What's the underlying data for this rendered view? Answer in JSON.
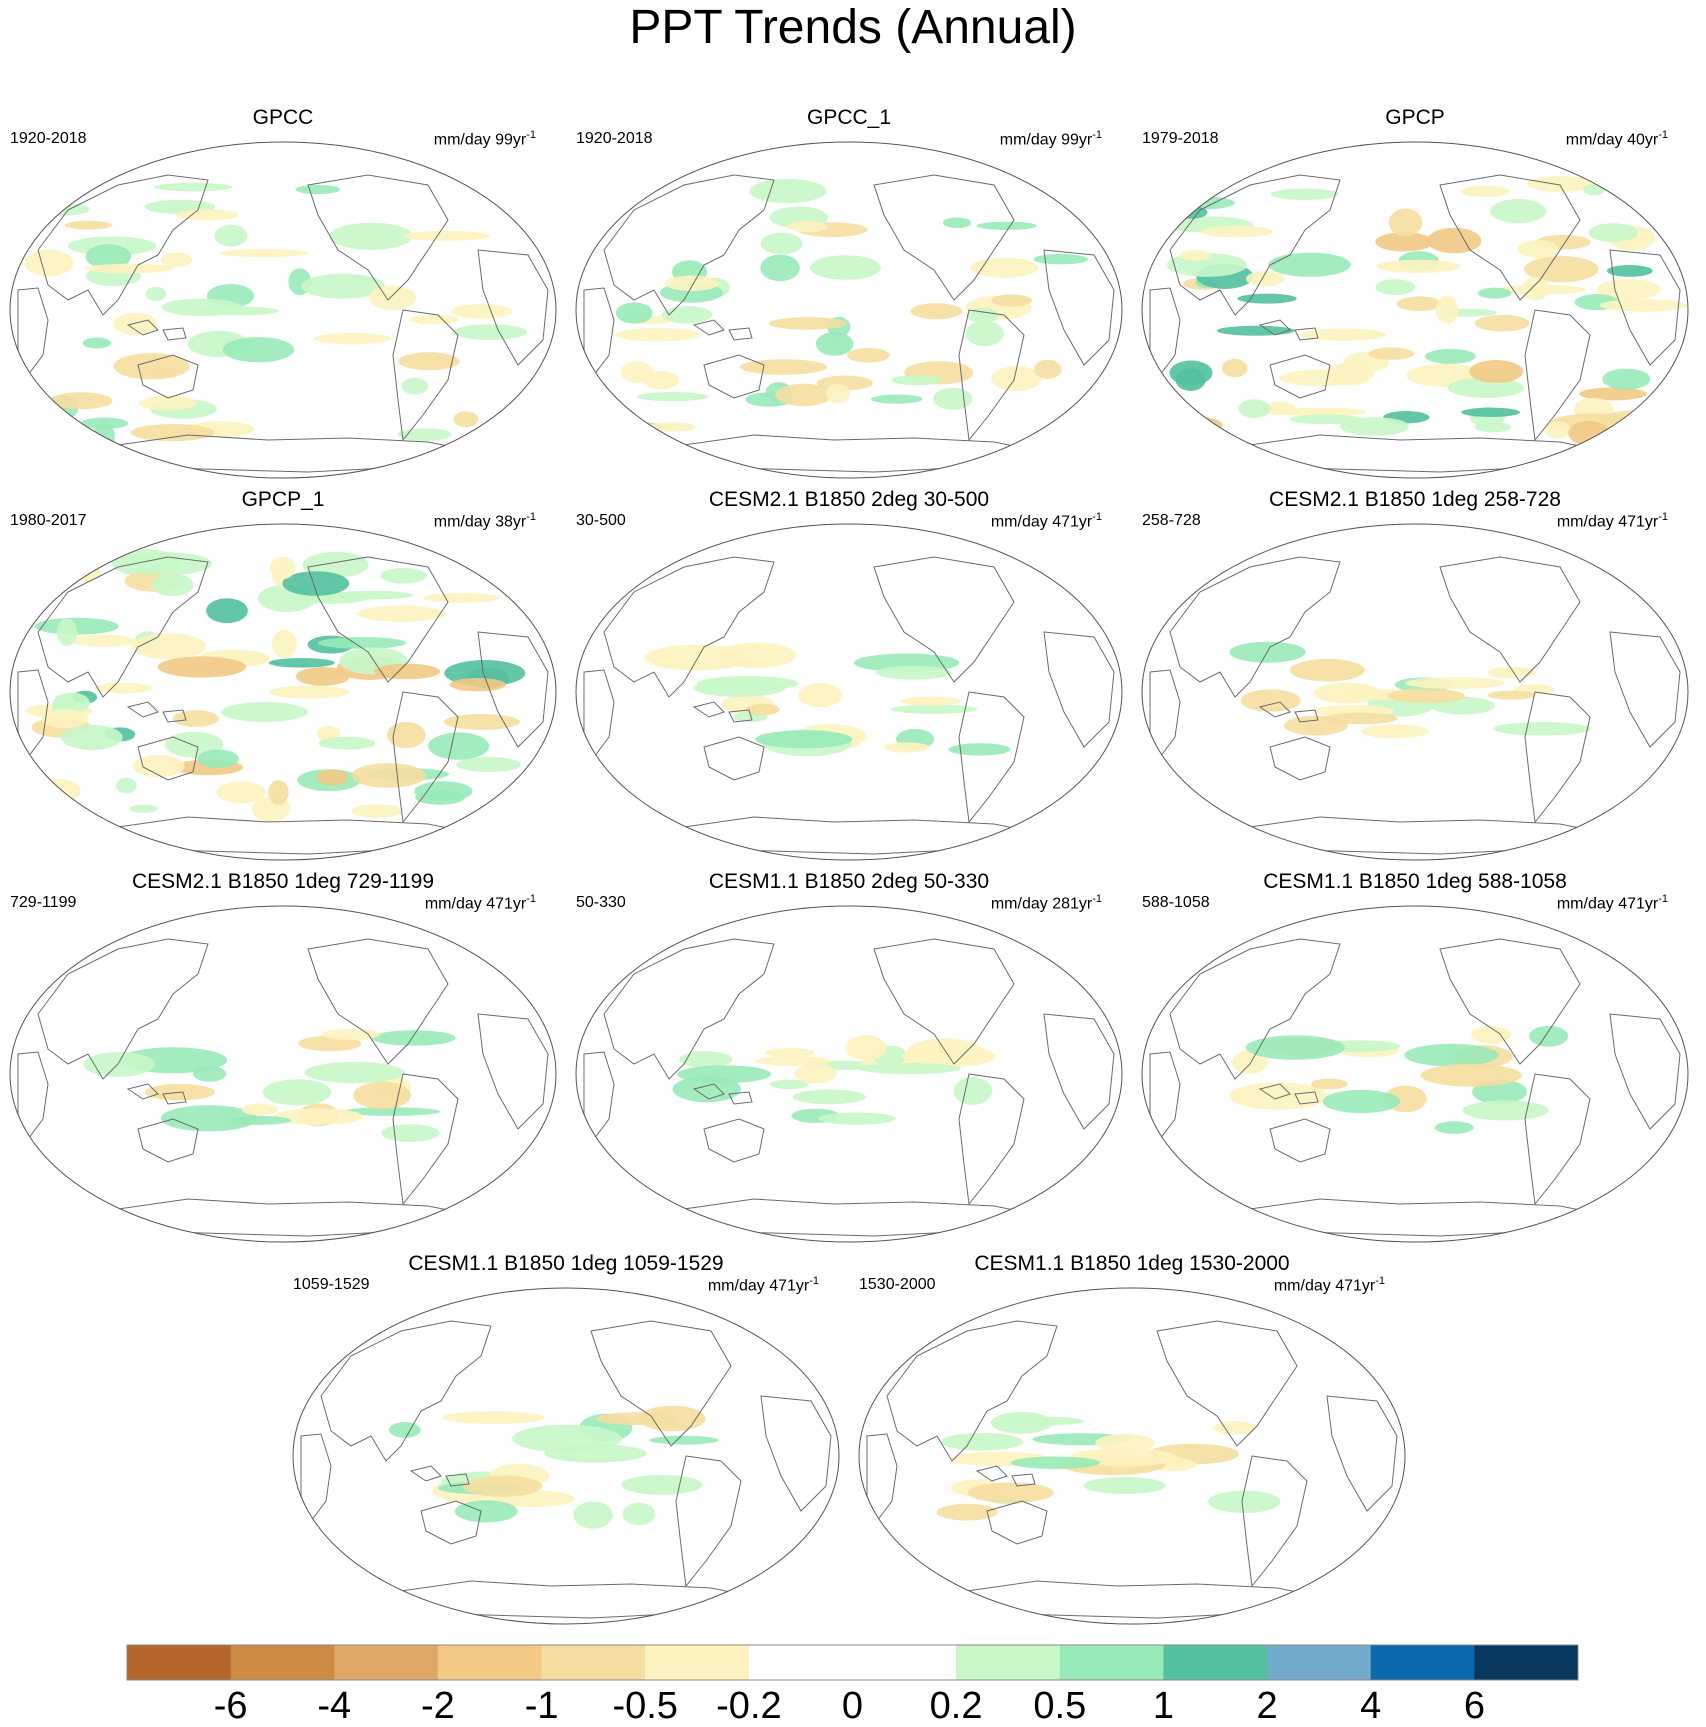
{
  "figure": {
    "title": "PPT Trends (Annual)"
  },
  "colors": {
    "coastline": "#6b6b6b",
    "frame": "#555555"
  },
  "palette": [
    "#b5662b",
    "#cd8a45",
    "#e0a866",
    "#f2c985",
    "#f5dea0",
    "#fdf3c0",
    "#ffffff",
    "#ffffff",
    "#c8f7c8",
    "#98eab8",
    "#53c0a0",
    "#73abcb",
    "#0a6aad",
    "#08385e"
  ],
  "colorbar_labels": [
    "-6",
    "-4",
    "-2",
    "-1",
    "-0.5",
    "-0.2",
    "0",
    "0.2",
    "0.5",
    "1",
    "2",
    "4",
    "6"
  ],
  "units_template": "mm/day",
  "panels": [
    {
      "title": "GPCC",
      "period": "1920-2018",
      "units": "mm/day 99yr",
      "exp": "-1",
      "intensity": "obs"
    },
    {
      "title": "GPCC_1",
      "period": "1920-2018",
      "units": "mm/day 99yr",
      "exp": "-1",
      "intensity": "obs"
    },
    {
      "title": "GPCP",
      "period": "1979-2018",
      "units": "mm/day 40yr",
      "exp": "-1",
      "intensity": "strong"
    },
    {
      "title": "GPCP_1",
      "period": "1980-2017",
      "units": "mm/day 38yr",
      "exp": "-1",
      "intensity": "strong"
    },
    {
      "title": "CESM2.1 B1850 2deg 30-500",
      "period": "30-500",
      "units": "mm/day 471yr",
      "exp": "-1",
      "intensity": "weak"
    },
    {
      "title": "CESM2.1 B1850 1deg 258-728",
      "period": "258-728",
      "units": "mm/day 471yr",
      "exp": "-1",
      "intensity": "weak"
    },
    {
      "title": "CESM2.1 B1850 1deg 729-1199",
      "period": "729-1199",
      "units": "mm/day 471yr",
      "exp": "-1",
      "intensity": "weak"
    },
    {
      "title": "CESM1.1 B1850 2deg 50-330",
      "period": "50-330",
      "units": "mm/day 281yr",
      "exp": "-1",
      "intensity": "weak"
    },
    {
      "title": "CESM1.1 B1850 1deg 588-1058",
      "period": "588-1058",
      "units": "mm/day 471yr",
      "exp": "-1",
      "intensity": "weak"
    },
    {
      "title": "CESM1.1 B1850 1deg 1059-1529",
      "period": "1059-1529",
      "units": "mm/day 471yr",
      "exp": "-1",
      "intensity": "weak"
    },
    {
      "title": "CESM1.1 B1850 1deg 1530-2000",
      "period": "1530-2000",
      "units": "mm/day 471yr",
      "exp": "-1",
      "intensity": "weak"
    }
  ]
}
